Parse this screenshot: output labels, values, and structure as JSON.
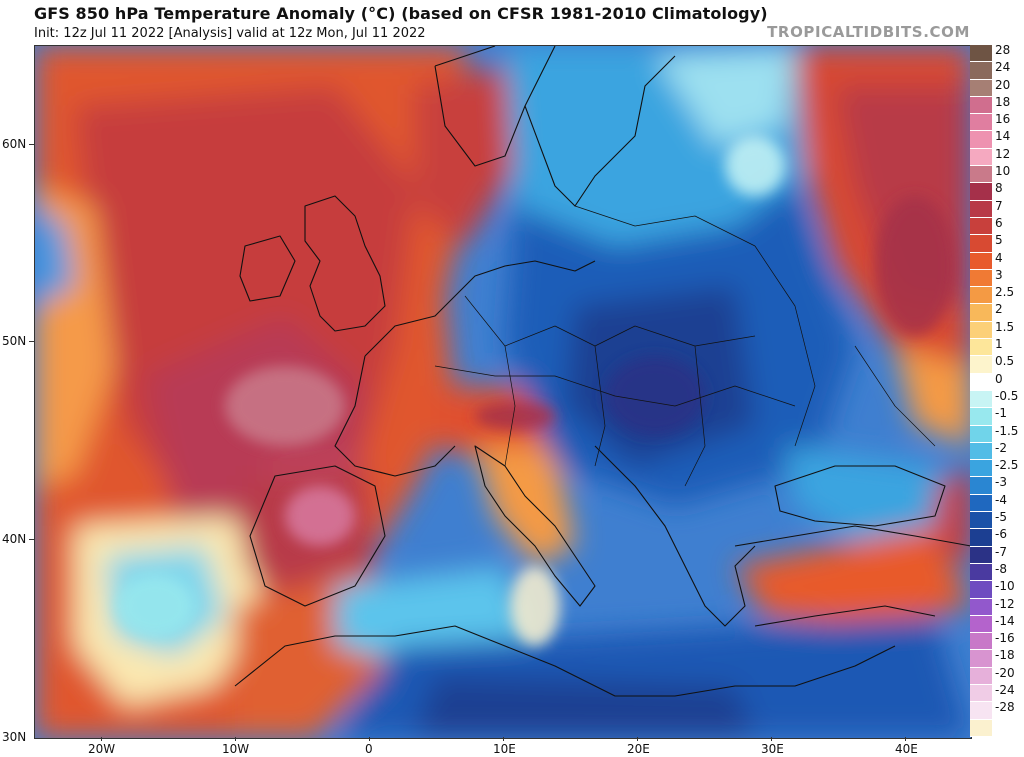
{
  "header": {
    "title": "GFS 850 hPa Temperature Anomaly (°C) (based on CFSR 1981-2010 Climatology)",
    "subtitle": "Init: 12z Jul 11 2022   [Analysis]   valid at 12z Mon, Jul 11 2022",
    "brand": "TROPICALTIDBITS.COM"
  },
  "axes": {
    "lat_labels": [
      "60N",
      "50N",
      "40N",
      "30N"
    ],
    "lon_labels": [
      "20W",
      "10W",
      "0",
      "10E",
      "20E",
      "30E",
      "40E"
    ]
  },
  "legend": {
    "levels": [
      {
        "label": "28",
        "color": "#6e5444"
      },
      {
        "label": "24",
        "color": "#8a6a5c"
      },
      {
        "label": "20",
        "color": "#a67f74"
      },
      {
        "label": "18",
        "color": "#d06e8e"
      },
      {
        "label": "16",
        "color": "#e07ea0"
      },
      {
        "label": "14",
        "color": "#ee92b0"
      },
      {
        "label": "12",
        "color": "#f5a9c0"
      },
      {
        "label": "10",
        "color": "#c97a8a"
      },
      {
        "label": "8",
        "color": "#a5304a"
      },
      {
        "label": "7",
        "color": "#b83a47"
      },
      {
        "label": "6",
        "color": "#c8403c"
      },
      {
        "label": "5",
        "color": "#d84a32"
      },
      {
        "label": "4",
        "color": "#e85a2c"
      },
      {
        "label": "3",
        "color": "#f07a34"
      },
      {
        "label": "2.5",
        "color": "#f49a44"
      },
      {
        "label": "2",
        "color": "#f8b85a"
      },
      {
        "label": "1.5",
        "color": "#fcd078"
      },
      {
        "label": "1",
        "color": "#fde69a"
      },
      {
        "label": "0.5",
        "color": "#fdf4cc"
      },
      {
        "label": "0",
        "color": "#ffffff"
      },
      {
        "label": "-0.5",
        "color": "#c8f4f4"
      },
      {
        "label": "-1",
        "color": "#98e8ee"
      },
      {
        "label": "-1.5",
        "color": "#70d4ea"
      },
      {
        "label": "-2",
        "color": "#52bce6"
      },
      {
        "label": "-2.5",
        "color": "#3aa4e0"
      },
      {
        "label": "-3",
        "color": "#2a86d2"
      },
      {
        "label": "-4",
        "color": "#1f68bf"
      },
      {
        "label": "-5",
        "color": "#1b52a8"
      },
      {
        "label": "-6",
        "color": "#1c3f92"
      },
      {
        "label": "-7",
        "color": "#2b3286"
      },
      {
        "label": "-8",
        "color": "#4a3aa0"
      },
      {
        "label": "-10",
        "color": "#6e4cc0"
      },
      {
        "label": "-12",
        "color": "#9258cc"
      },
      {
        "label": "-14",
        "color": "#b463cc"
      },
      {
        "label": "-16",
        "color": "#c878c8"
      },
      {
        "label": "-18",
        "color": "#d894d0"
      },
      {
        "label": "-20",
        "color": "#e6b0da"
      },
      {
        "label": "-24",
        "color": "#f0cce6"
      },
      {
        "label": "-28",
        "color": "#f7e4f2"
      },
      {
        "label": "",
        "color": "#fbf1cf"
      }
    ]
  }
}
